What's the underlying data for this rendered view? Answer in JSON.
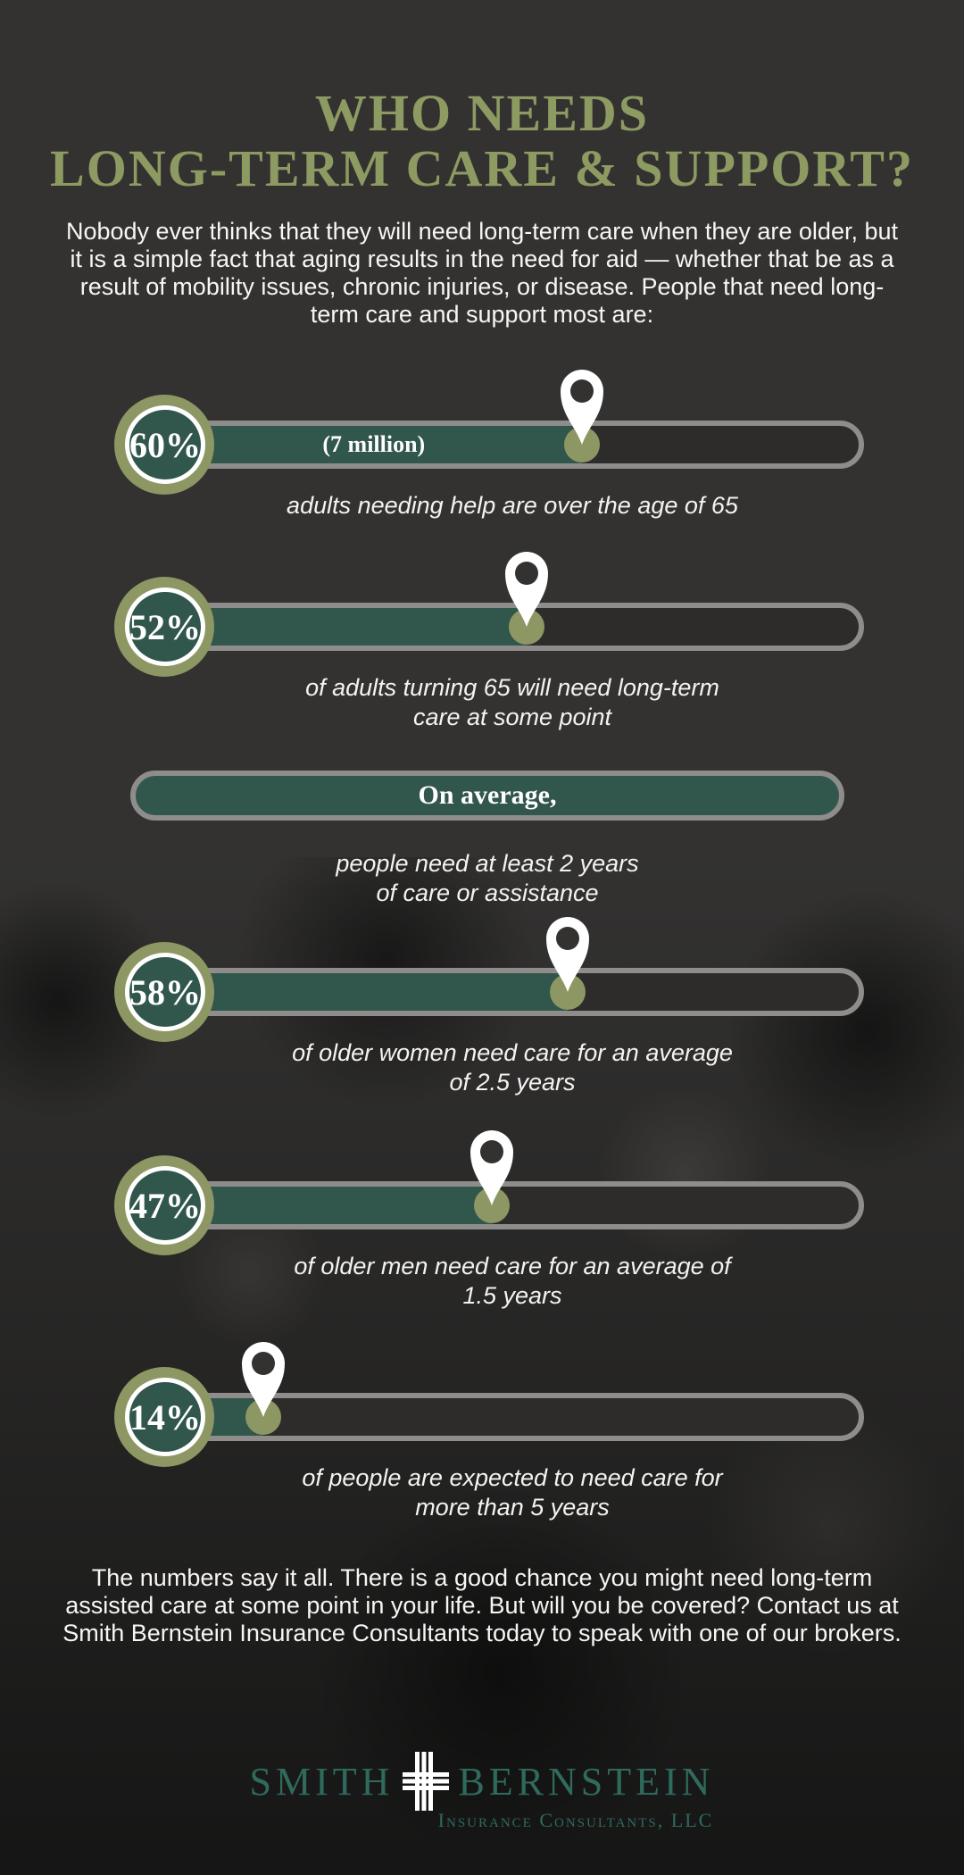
{
  "page": {
    "title_line1": "WHO NEEDS",
    "title_line2": "LONG-TERM CARE & SUPPORT?",
    "intro": "Nobody ever thinks that they will need long-term care when they are older, but it is a simple fact that aging results in the need for aid — whether that be as a result of mobility issues, chronic injuries, or disease. People that need long-term care and support most are:",
    "closing": "The numbers say it all. There is a good chance you might need long-term assisted care at some point in your life. But will you be covered? Contact us at Smith Bernstein Insurance Consultants today to speak with one of our brokers."
  },
  "colors": {
    "background": "#333231",
    "olive_accent": "#8d9763",
    "title_olive": "#8d9a62",
    "teal_fill": "#31564c",
    "track_border": "#8e8d8b",
    "track_empty": "#2d2c2a",
    "text_white": "#f6f5f3",
    "logo_teal": "#2f6b5d",
    "pin_white": "#ffffff"
  },
  "rows": [
    {
      "pct": "60%",
      "value": 60,
      "bar_label": "(7 million)",
      "caption": "adults needing help are over the age of 65"
    },
    {
      "pct": "52%",
      "value": 52,
      "bar_label": "",
      "caption": "of adults turning 65 will need long-term\ncare at some point"
    },
    {
      "pct": "58%",
      "value": 58,
      "bar_label": "",
      "caption": "of older women need care for an average\nof 2.5 years"
    },
    {
      "pct": "47%",
      "value": 47,
      "bar_label": "",
      "caption": "of older men need care for an average of\n1.5 years"
    },
    {
      "pct": "14%",
      "value": 14,
      "bar_label": "",
      "caption": "of people are expected to need care for\nmore than 5 years"
    }
  ],
  "average_row": {
    "label": "On average,",
    "caption": "people need at least 2 years\nof care or assistance"
  },
  "logo": {
    "name_left": "SMITH",
    "name_right": "BERNSTEIN",
    "cross_icon": "striped-plus-cross-icon",
    "subtitle": "Insurance Consultants, LLC"
  },
  "chart_data": {
    "type": "bar",
    "title": "WHO NEEDS LONG-TERM CARE & SUPPORT?",
    "unit": "%",
    "xlim": [
      0,
      100
    ],
    "categories": [
      "adults needing help are over the age of 65 (7 million)",
      "of adults turning 65 will need long-term care at some point",
      "of older women need care for an average of 2.5 years",
      "of older men need care for an average of 1.5 years",
      "of people are expected to need care for more than 5 years"
    ],
    "values": [
      60,
      52,
      58,
      47,
      14
    ],
    "annotations": [
      "On average, people need at least 2 years of care or assistance"
    ],
    "legend": false,
    "grid": false
  }
}
